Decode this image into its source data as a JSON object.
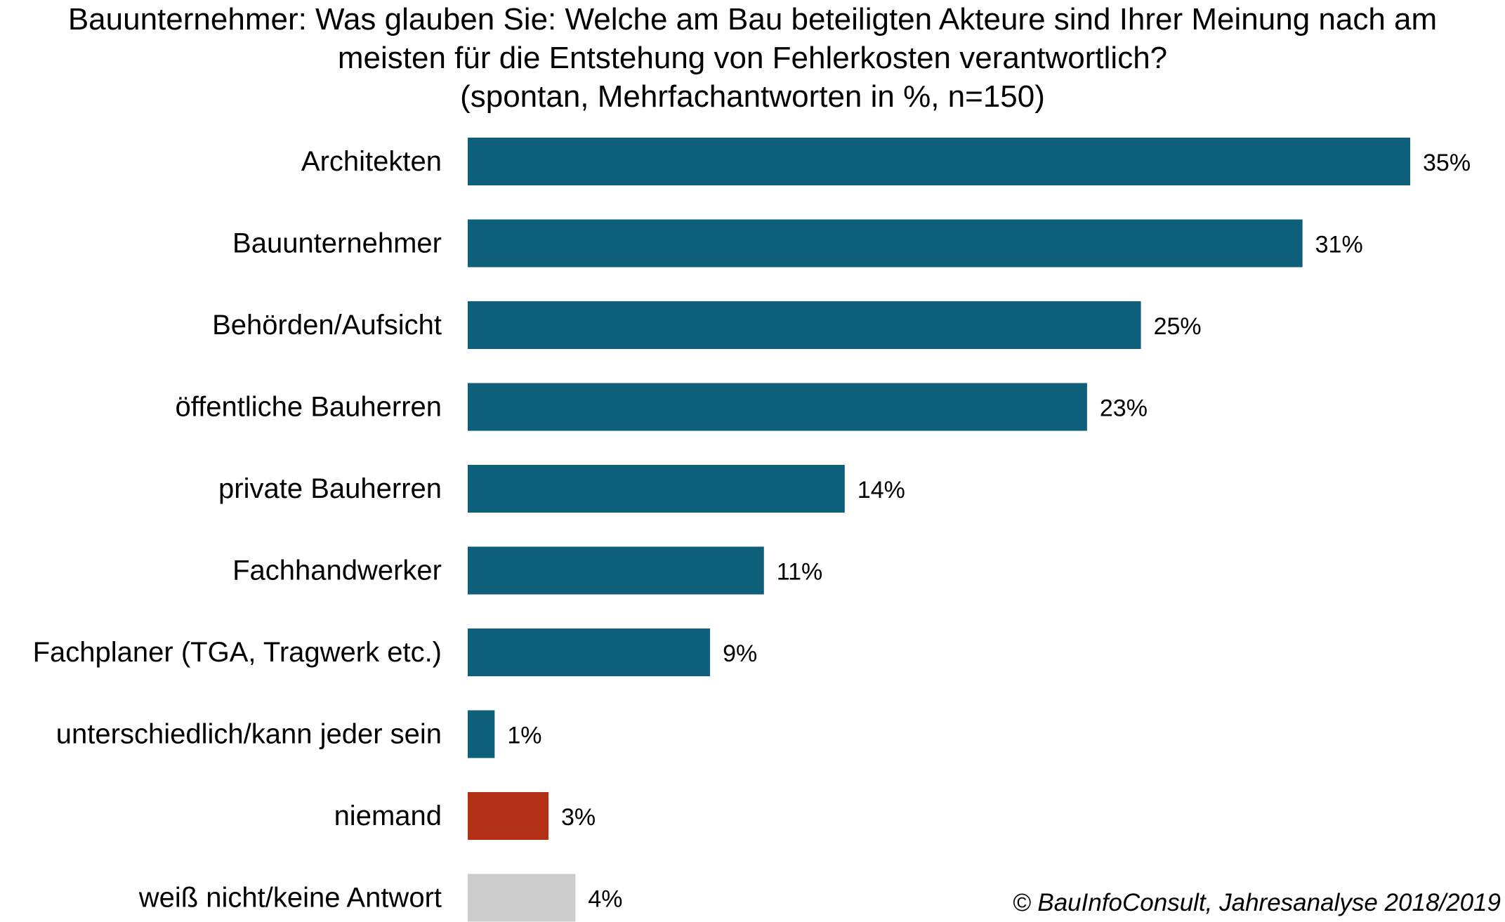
{
  "chart_data": {
    "type": "bar",
    "orientation": "horizontal",
    "title_lines": [
      "Bauunternehmer:  Was glauben  Sie: Welche am Bau beteiligten  Akteure  sind Ihrer Meinung  nach am",
      "meisten  für die Entstehung  von Fehlerkosten  verantwortlich?",
      "(spontan,  Mehrfachantworten  in %, n=150)"
    ],
    "categories": [
      "Architekten",
      "Bauunternehmer",
      "Behörden/Aufsicht",
      "öffentliche Bauherren",
      "private Bauherren",
      "Fachhandwerker",
      "Fachplaner (TGA, Tragwerk etc.)",
      "unterschiedlich/kann jeder sein",
      "niemand",
      "weiß nicht/keine Antwort"
    ],
    "values": [
      35,
      31,
      25,
      23,
      14,
      11,
      9,
      1,
      3,
      4
    ],
    "value_labels": [
      "35%",
      "31%",
      "25%",
      "23%",
      "14%",
      "11%",
      "9%",
      "1%",
      "3%",
      "4%"
    ],
    "bar_colors": [
      "#0d5f7a",
      "#0d5f7a",
      "#0d5f7a",
      "#0d5f7a",
      "#0d5f7a",
      "#0d5f7a",
      "#0d5f7a",
      "#0d5f7a",
      "#b23016",
      "#cccccc"
    ],
    "xlim": [
      0,
      35
    ],
    "xlabel": "",
    "ylabel": "",
    "grid": false,
    "legend": "none",
    "source": "© BauInfoConsult, Jahresanalyse 2018/2019"
  }
}
